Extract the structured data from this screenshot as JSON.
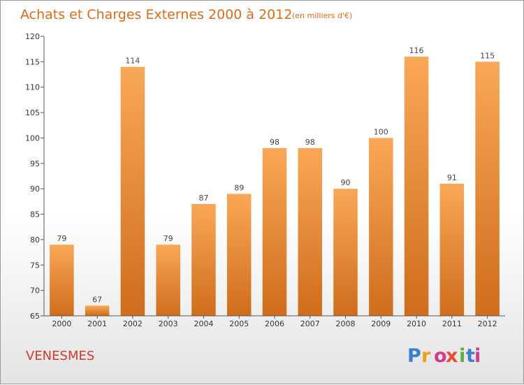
{
  "chart_data": {
    "type": "bar",
    "title": "Achats et Charges Externes 2000 à 2012",
    "subtitle": "(en milliers d'€)",
    "categories": [
      "2000",
      "2001",
      "2002",
      "2003",
      "2004",
      "2005",
      "2006",
      "2007",
      "2008",
      "2009",
      "2010",
      "2011",
      "2012"
    ],
    "values": [
      79,
      67,
      114,
      79,
      87,
      89,
      98,
      98,
      90,
      100,
      116,
      91,
      115
    ],
    "xlabel": "",
    "ylabel": "",
    "ylim": [
      65,
      120
    ],
    "yticks": [
      65,
      70,
      75,
      80,
      85,
      90,
      95,
      100,
      105,
      110,
      115,
      120
    ],
    "grid": false,
    "bar_color": "#f08a2c"
  },
  "place": "VENESMES",
  "logo": {
    "letters": [
      "P",
      "r",
      "o",
      "x",
      "i",
      "t",
      "i"
    ],
    "colors": [
      "#3a7fd0",
      "#e8a21c",
      "#d23a8c",
      "#e84a2c",
      "#5fb03a",
      "#3a7fd0",
      "#d23a8c"
    ]
  }
}
